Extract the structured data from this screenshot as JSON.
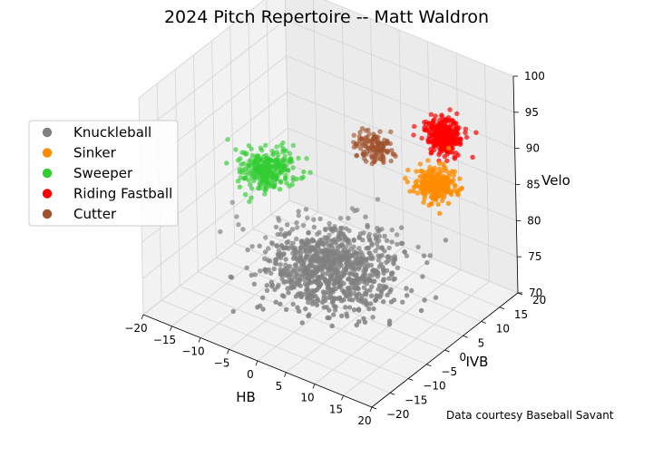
{
  "chart_data": {
    "type": "scatter",
    "projection": "3d",
    "title": "2024 Pitch Repertoire -- Matt Waldron",
    "xlabel": "HB",
    "ylabel": "IVB",
    "zlabel": "Velo",
    "xlim": [
      -20,
      20
    ],
    "ylim": [
      -20,
      20
    ],
    "zlim": [
      70,
      100
    ],
    "xticks": [
      "−20",
      "−15",
      "−10",
      "−5",
      "0",
      "5",
      "10",
      "15",
      "20"
    ],
    "yticks": [
      "−20",
      "−15",
      "−10",
      "−5",
      "0",
      "5",
      "10",
      "15",
      "20"
    ],
    "zticks": [
      "70",
      "75",
      "80",
      "85",
      "90",
      "95",
      "100"
    ],
    "grid": true,
    "legend_position": "left",
    "series": [
      {
        "name": "Knuckleball",
        "color": "#808080",
        "center": {
          "hb": 2,
          "ivb": -3,
          "velo": 77
        },
        "spread": {
          "hb": 5,
          "ivb": 5,
          "velo": 1.5
        },
        "count": 900
      },
      {
        "name": "Sinker",
        "color": "#ff8c00",
        "center": {
          "hb": 15,
          "ivb": 6,
          "velo": 89
        },
        "spread": {
          "hb": 1.5,
          "ivb": 1.5,
          "velo": 1.0
        },
        "count": 260
      },
      {
        "name": "Sweeper",
        "color": "#32cd32",
        "center": {
          "hb": -12,
          "ivb": 2,
          "velo": 84
        },
        "spread": {
          "hb": 2.0,
          "ivb": 2.5,
          "velo": 1.0
        },
        "count": 280
      },
      {
        "name": "Riding Fastball",
        "color": "#ff0000",
        "center": {
          "hb": 10,
          "ivb": 16,
          "velo": 90
        },
        "spread": {
          "hb": 1.3,
          "ivb": 1.2,
          "velo": 1.0
        },
        "count": 300
      },
      {
        "name": "Cutter",
        "color": "#a0522d",
        "center": {
          "hb": -1,
          "ivb": 14,
          "velo": 86
        },
        "spread": {
          "hb": 1.3,
          "ivb": 1.2,
          "velo": 1.0
        },
        "count": 130
      }
    ],
    "annotation": "Data courtesy Baseball Savant"
  }
}
